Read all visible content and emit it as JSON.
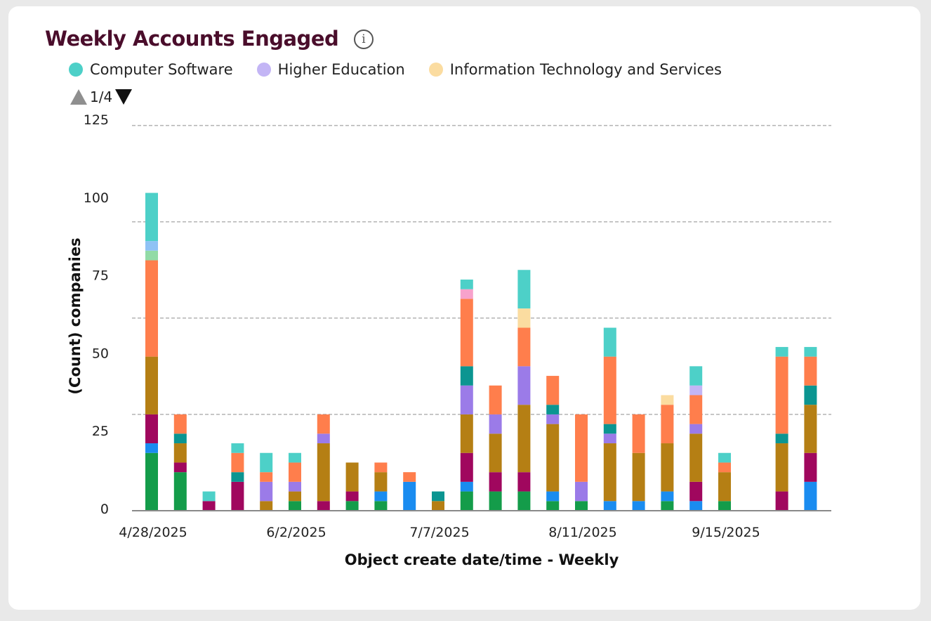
{
  "card": {
    "title": "Weekly Accounts Engaged",
    "info_icon": "info-circle-icon",
    "info_glyph": "i"
  },
  "legend": {
    "items": [
      {
        "label": "Computer Software",
        "color": "#4dd0c8"
      },
      {
        "label": "Higher Education",
        "color": "#c3b5f5"
      },
      {
        "label": "Information Technology and Services",
        "color": "#fbdca0"
      }
    ],
    "pager": {
      "text": "1/4",
      "prev_icon": "triangle-up-icon",
      "next_icon": "triangle-down-icon"
    }
  },
  "chart_data": {
    "type": "bar",
    "stacked": true,
    "title": "Weekly Accounts Engaged",
    "xlabel": "Object create date/time - Weekly",
    "ylabel": "(Count) companies",
    "ylim": [
      0,
      125
    ],
    "yticks": [
      "0",
      "25",
      "50",
      "75",
      "100",
      "125"
    ],
    "gridlines": [
      30,
      60,
      90,
      120
    ],
    "grid": true,
    "legend_position": "top-left",
    "x_tick_labels": [
      {
        "index": 0,
        "label": "4/28/2025"
      },
      {
        "index": 5,
        "label": "6/2/2025"
      },
      {
        "index": 10,
        "label": "7/7/2025"
      },
      {
        "index": 15,
        "label": "8/11/2025"
      },
      {
        "index": 20,
        "label": "9/15/2025"
      }
    ],
    "segment_colors": {
      "green": "#149c4a",
      "blue": "#1a8cf0",
      "magenta": "#a0075e",
      "gold": "#b57f14",
      "lavender": "#9b7be8",
      "darkteal": "#0b9591",
      "orange": "#ff7e4c",
      "lightgreen": "#92dba6",
      "lightblue": "#8fc2f5",
      "pink": "#f7a2cc",
      "lightyellow": "#fbdca0",
      "lightlavender": "#c3b5f5",
      "teal": "#4dd0c8"
    },
    "bars": [
      [
        [
          "green",
          18
        ],
        [
          "blue",
          3
        ],
        [
          "magenta",
          9
        ],
        [
          "gold",
          18
        ],
        [
          "orange",
          30
        ],
        [
          "lightgreen",
          3
        ],
        [
          "lightblue",
          3
        ],
        [
          "teal",
          15
        ]
      ],
      [
        [
          "green",
          12
        ],
        [
          "magenta",
          3
        ],
        [
          "gold",
          6
        ],
        [
          "darkteal",
          3
        ],
        [
          "orange",
          6
        ]
      ],
      [
        [
          "magenta",
          3
        ],
        [
          "teal",
          3
        ]
      ],
      [
        [
          "magenta",
          9
        ],
        [
          "darkteal",
          3
        ],
        [
          "orange",
          6
        ],
        [
          "teal",
          3
        ]
      ],
      [
        [
          "gold",
          3
        ],
        [
          "lavender",
          6
        ],
        [
          "orange",
          3
        ],
        [
          "teal",
          6
        ]
      ],
      [
        [
          "green",
          3
        ],
        [
          "gold",
          3
        ],
        [
          "lavender",
          3
        ],
        [
          "orange",
          6
        ],
        [
          "teal",
          3
        ]
      ],
      [
        [
          "magenta",
          3
        ],
        [
          "gold",
          18
        ],
        [
          "lavender",
          3
        ],
        [
          "orange",
          6
        ]
      ],
      [
        [
          "green",
          3
        ],
        [
          "magenta",
          3
        ],
        [
          "gold",
          9
        ]
      ],
      [
        [
          "green",
          3
        ],
        [
          "blue",
          3
        ],
        [
          "gold",
          6
        ],
        [
          "orange",
          3
        ]
      ],
      [
        [
          "blue",
          9
        ],
        [
          "orange",
          3
        ]
      ],
      [
        [
          "gold",
          3
        ],
        [
          "darkteal",
          3
        ]
      ],
      [
        [
          "green",
          6
        ],
        [
          "blue",
          3
        ],
        [
          "magenta",
          9
        ],
        [
          "gold",
          12
        ],
        [
          "lavender",
          9
        ],
        [
          "darkteal",
          6
        ],
        [
          "orange",
          21
        ],
        [
          "pink",
          3
        ],
        [
          "teal",
          3
        ]
      ],
      [
        [
          "green",
          6
        ],
        [
          "magenta",
          6
        ],
        [
          "gold",
          12
        ],
        [
          "lavender",
          6
        ],
        [
          "orange",
          9
        ]
      ],
      [
        [
          "green",
          6
        ],
        [
          "magenta",
          6
        ],
        [
          "gold",
          21
        ],
        [
          "lavender",
          12
        ],
        [
          "orange",
          12
        ],
        [
          "lightyellow",
          6
        ],
        [
          "teal",
          12
        ]
      ],
      [
        [
          "green",
          3
        ],
        [
          "blue",
          3
        ],
        [
          "gold",
          21
        ],
        [
          "lavender",
          3
        ],
        [
          "darkteal",
          3
        ],
        [
          "orange",
          9
        ]
      ],
      [
        [
          "green",
          3
        ],
        [
          "lavender",
          6
        ],
        [
          "orange",
          21
        ]
      ],
      [
        [
          "blue",
          3
        ],
        [
          "gold",
          18
        ],
        [
          "lavender",
          3
        ],
        [
          "darkteal",
          3
        ],
        [
          "orange",
          21
        ],
        [
          "teal",
          9
        ]
      ],
      [
        [
          "blue",
          3
        ],
        [
          "gold",
          15
        ],
        [
          "orange",
          12
        ]
      ],
      [
        [
          "green",
          3
        ],
        [
          "blue",
          3
        ],
        [
          "gold",
          15
        ],
        [
          "orange",
          12
        ],
        [
          "lightyellow",
          3
        ]
      ],
      [
        [
          "blue",
          3
        ],
        [
          "magenta",
          6
        ],
        [
          "gold",
          15
        ],
        [
          "lavender",
          3
        ],
        [
          "orange",
          9
        ],
        [
          "lightlavender",
          3
        ],
        [
          "teal",
          6
        ]
      ],
      [
        [
          "green",
          3
        ],
        [
          "gold",
          9
        ],
        [
          "orange",
          3
        ],
        [
          "teal",
          3
        ]
      ],
      [],
      [
        [
          "magenta",
          6
        ],
        [
          "gold",
          15
        ],
        [
          "darkteal",
          3
        ],
        [
          "orange",
          24
        ],
        [
          "teal",
          3
        ]
      ],
      [
        [
          "blue",
          9
        ],
        [
          "magenta",
          9
        ],
        [
          "gold",
          15
        ],
        [
          "darkteal",
          6
        ],
        [
          "orange",
          9
        ],
        [
          "teal",
          3
        ]
      ]
    ]
  }
}
